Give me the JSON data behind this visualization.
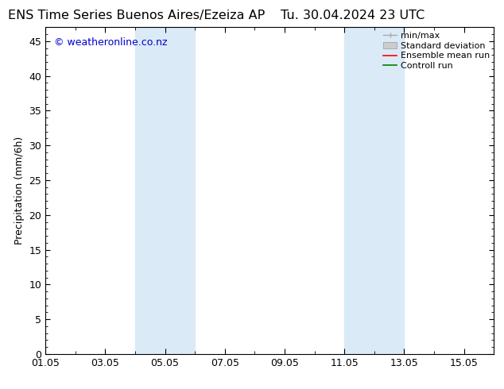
{
  "title_left": "ENS Time Series Buenos Aires/Ezeiza AP",
  "title_right": "Tu. 30.04.2024 23 UTC",
  "ylabel": "Precipitation (mm/6h)",
  "ylim": [
    0,
    47
  ],
  "yticks": [
    0,
    5,
    10,
    15,
    20,
    25,
    30,
    35,
    40,
    45
  ],
  "x_min": 0,
  "x_max": 15,
  "xtick_labels": [
    "01.05",
    "03.05",
    "05.05",
    "07.05",
    "09.05",
    "11.05",
    "13.05",
    "15.05"
  ],
  "xtick_positions": [
    0,
    2,
    4,
    6,
    8,
    10,
    12,
    14
  ],
  "shaded_regions": [
    {
      "x_start": 3.0,
      "x_end": 5.0,
      "color": "#daeaf7"
    },
    {
      "x_start": 10.0,
      "x_end": 12.0,
      "color": "#daeaf7"
    }
  ],
  "watermark_text": "© weatheronline.co.nz",
  "watermark_color": "#0000cc",
  "background_color": "#ffffff",
  "plot_bg_color": "#ffffff",
  "title_fontsize": 11.5,
  "axis_label_fontsize": 9,
  "tick_fontsize": 9,
  "watermark_fontsize": 9,
  "legend_fontsize": 8
}
